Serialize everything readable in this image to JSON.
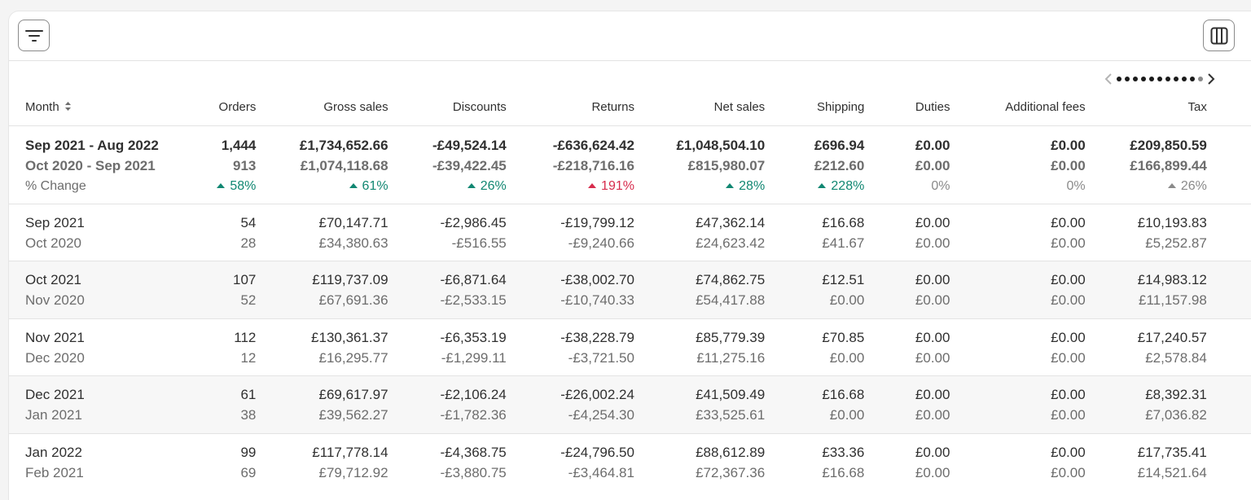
{
  "toolbar": {
    "filter_icon": "filter-icon",
    "columns_icon": "columns-icon"
  },
  "pager": {
    "dots": 11,
    "active_last": true
  },
  "columns": [
    "Month",
    "Orders",
    "Gross sales",
    "Discounts",
    "Returns",
    "Net sales",
    "Shipping",
    "Duties",
    "Additional fees",
    "Tax"
  ],
  "summary": {
    "current_label": "Sep 2021 - Aug 2022",
    "previous_label": "Oct 2020 - Sep 2021",
    "change_label": "% Change",
    "current": [
      "1,444",
      "£1,734,652.66",
      "-£49,524.14",
      "-£636,624.42",
      "£1,048,504.10",
      "£696.94",
      "£0.00",
      "£0.00",
      "£209,850.59"
    ],
    "previous": [
      "913",
      "£1,074,118.68",
      "-£39,422.45",
      "-£218,716.16",
      "£815,980.07",
      "£212.60",
      "£0.00",
      "£0.00",
      "£166,899.44"
    ],
    "change": [
      "58%",
      "61%",
      "26%",
      "191%",
      "28%",
      "228%",
      "0%",
      "0%",
      "26%"
    ],
    "change_state": [
      "up",
      "up",
      "up",
      "upred",
      "up",
      "up",
      "flat",
      "flat",
      "upgray"
    ]
  },
  "rows": [
    {
      "month": "Sep 2021",
      "prev_month": "Oct 2020",
      "current": [
        "54",
        "£70,147.71",
        "-£2,986.45",
        "-£19,799.12",
        "£47,362.14",
        "£16.68",
        "£0.00",
        "£0.00",
        "£10,193.83"
      ],
      "previous": [
        "28",
        "£34,380.63",
        "-£516.55",
        "-£9,240.66",
        "£24,623.42",
        "£41.67",
        "£0.00",
        "£0.00",
        "£5,252.87"
      ]
    },
    {
      "month": "Oct 2021",
      "prev_month": "Nov 2020",
      "current": [
        "107",
        "£119,737.09",
        "-£6,871.64",
        "-£38,002.70",
        "£74,862.75",
        "£12.51",
        "£0.00",
        "£0.00",
        "£14,983.12"
      ],
      "previous": [
        "52",
        "£67,691.36",
        "-£2,533.15",
        "-£10,740.33",
        "£54,417.88",
        "£0.00",
        "£0.00",
        "£0.00",
        "£11,157.98"
      ]
    },
    {
      "month": "Nov 2021",
      "prev_month": "Dec 2020",
      "current": [
        "112",
        "£130,361.37",
        "-£6,353.19",
        "-£38,228.79",
        "£85,779.39",
        "£70.85",
        "£0.00",
        "£0.00",
        "£17,240.57"
      ],
      "previous": [
        "12",
        "£16,295.77",
        "-£1,299.11",
        "-£3,721.50",
        "£11,275.16",
        "£0.00",
        "£0.00",
        "£0.00",
        "£2,578.84"
      ]
    },
    {
      "month": "Dec 2021",
      "prev_month": "Jan 2021",
      "current": [
        "61",
        "£69,617.97",
        "-£2,106.24",
        "-£26,002.24",
        "£41,509.49",
        "£16.68",
        "£0.00",
        "£0.00",
        "£8,392.31"
      ],
      "previous": [
        "38",
        "£39,562.27",
        "-£1,782.36",
        "-£4,254.30",
        "£33,525.61",
        "£0.00",
        "£0.00",
        "£0.00",
        "£7,036.82"
      ]
    },
    {
      "month": "Jan 2022",
      "prev_month": "Feb 2021",
      "current": [
        "99",
        "£117,778.14",
        "-£4,368.75",
        "-£24,796.50",
        "£88,612.89",
        "£33.36",
        "£0.00",
        "£0.00",
        "£17,735.41"
      ],
      "previous": [
        "69",
        "£79,712.92",
        "-£3,880.75",
        "-£3,464.81",
        "£72,367.36",
        "£16.68",
        "£0.00",
        "£0.00",
        "£14,521.64"
      ]
    }
  ],
  "colors": {
    "up": "#118772",
    "upred": "#d72c4d",
    "flat": "#8a8a8a",
    "upgray": "#8a8a8a"
  }
}
